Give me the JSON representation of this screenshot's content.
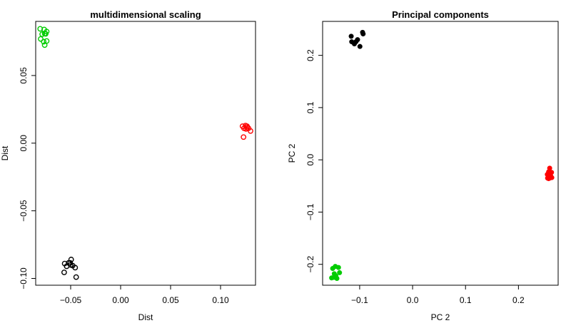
{
  "chart_data": [
    {
      "type": "scatter",
      "title": "multidimensional scaling",
      "xlabel": "Dist",
      "ylabel": "Dist",
      "xlim": [
        -0.085,
        0.135
      ],
      "ylim": [
        -0.105,
        0.09
      ],
      "xticks": [
        {
          "value": -0.05,
          "label": "−0.05"
        },
        {
          "value": 0.0,
          "label": "0.00"
        },
        {
          "value": 0.05,
          "label": "0.05"
        },
        {
          "value": 0.1,
          "label": "0.10"
        }
      ],
      "yticks": [
        {
          "value": -0.1,
          "label": "−0.10"
        },
        {
          "value": -0.05,
          "label": "−0.05"
        },
        {
          "value": 0.0,
          "label": "0.00"
        },
        {
          "value": 0.05,
          "label": "0.05"
        }
      ],
      "grid": false,
      "marker": "open-circle",
      "series": [
        {
          "color": "#00cc00",
          "points": [
            [
              -0.0805,
              0.0845
            ],
            [
              -0.0765,
              0.084
            ],
            [
              -0.074,
              0.0825
            ],
            [
              -0.076,
              0.081
            ],
            [
              -0.0785,
              0.0805
            ],
            [
              -0.075,
              0.0808
            ],
            [
              -0.08,
              0.077
            ],
            [
              -0.074,
              0.0755
            ],
            [
              -0.077,
              0.075
            ],
            [
              -0.076,
              0.0725
            ]
          ]
        },
        {
          "color": "#ff0000",
          "points": [
            [
              0.122,
              0.0125
            ],
            [
              0.125,
              0.013
            ],
            [
              0.1265,
              0.0125
            ],
            [
              0.1235,
              0.011
            ],
            [
              0.1255,
              0.0105
            ],
            [
              0.128,
              0.011
            ],
            [
              0.13,
              0.009
            ],
            [
              0.1265,
              0.0115
            ],
            [
              0.123,
              0.0045
            ]
          ]
        },
        {
          "color": "#000000",
          "points": [
            [
              -0.0495,
              -0.086
            ],
            [
              -0.052,
              -0.0885
            ],
            [
              -0.0505,
              -0.0885
            ],
            [
              -0.056,
              -0.089
            ],
            [
              -0.05,
              -0.09
            ],
            [
              -0.048,
              -0.0905
            ],
            [
              -0.054,
              -0.091
            ],
            [
              -0.0455,
              -0.092
            ],
            [
              -0.0565,
              -0.0955
            ],
            [
              -0.0445,
              -0.099
            ]
          ]
        }
      ]
    },
    {
      "type": "scatter",
      "title": "Principal components",
      "xlabel": "PC 2",
      "ylabel": "PC 2",
      "xlim": [
        -0.17,
        0.275
      ],
      "ylim": [
        -0.24,
        0.265
      ],
      "xticks": [
        {
          "value": -0.1,
          "label": "−0.1"
        },
        {
          "value": 0.0,
          "label": "0.0"
        },
        {
          "value": 0.1,
          "label": "0.1"
        },
        {
          "value": 0.2,
          "label": "0.2"
        }
      ],
      "yticks": [
        {
          "value": -0.2,
          "label": "−0.2"
        },
        {
          "value": -0.1,
          "label": "−0.1"
        },
        {
          "value": 0.0,
          "label": "0.0"
        },
        {
          "value": 0.1,
          "label": "0.1"
        },
        {
          "value": 0.2,
          "label": "0.2"
        }
      ],
      "grid": false,
      "marker": "filled-circle",
      "series": [
        {
          "color": "#000000",
          "points": [
            [
              -0.0945,
              0.244
            ],
            [
              -0.0935,
              0.241
            ],
            [
              -0.116,
              0.2365
            ],
            [
              -0.104,
              0.23
            ],
            [
              -0.115,
              0.226
            ],
            [
              -0.107,
              0.226
            ],
            [
              -0.11,
              0.222
            ],
            [
              -0.0995,
              0.217
            ]
          ]
        },
        {
          "color": "#ff0000",
          "points": [
            [
              0.259,
              -0.016
            ],
            [
              0.257,
              -0.023
            ],
            [
              0.2625,
              -0.024
            ],
            [
              0.2545,
              -0.028
            ],
            [
              0.261,
              -0.031
            ],
            [
              0.255,
              -0.035
            ],
            [
              0.259,
              -0.035
            ],
            [
              0.263,
              -0.034
            ],
            [
              0.257,
              -0.036
            ]
          ]
        },
        {
          "color": "#00cc00",
          "points": [
            [
              -0.146,
              -0.204
            ],
            [
              -0.14,
              -0.206
            ],
            [
              -0.151,
              -0.208
            ],
            [
              -0.138,
              -0.216
            ],
            [
              -0.148,
              -0.218
            ],
            [
              -0.145,
              -0.222
            ],
            [
              -0.153,
              -0.226
            ],
            [
              -0.149,
              -0.225
            ],
            [
              -0.143,
              -0.227
            ]
          ]
        }
      ]
    }
  ]
}
